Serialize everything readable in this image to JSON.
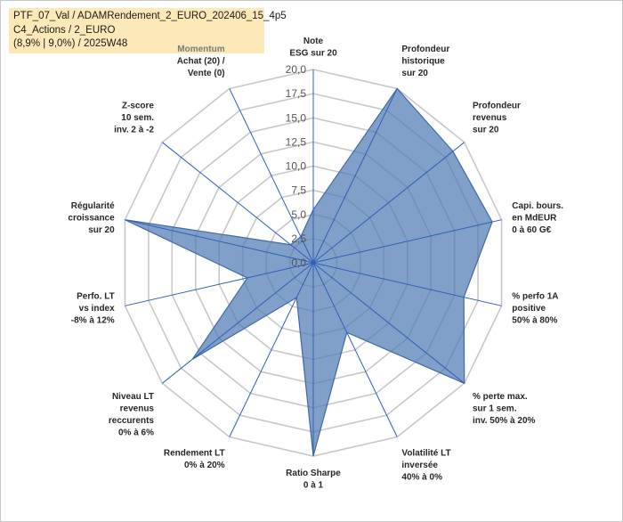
{
  "header": {
    "line1": "PTF_07_Val / ADAMRendement_2_EURO_202406_15_4p5",
    "line2": "C4_Actions / 2_EURO",
    "line3": "(8,9% | 9,0%) / 2025W48"
  },
  "colors": {
    "fill": "#4f7cb5",
    "axis": "#2e5fb8",
    "grid": "#c8c8c8"
  },
  "chart_data": {
    "type": "radar",
    "rmin": 0,
    "rmax": 20,
    "ticks": [
      "0,0",
      "2,5",
      "5,0",
      "7,5",
      "10,0",
      "12,5",
      "15,0",
      "17,5",
      "20,0"
    ],
    "axes": [
      {
        "lines": [
          "Note",
          "ESG sur 20"
        ],
        "value": 5.5,
        "muted": [
          false,
          false
        ]
      },
      {
        "lines": [
          "Profondeur",
          "historique",
          "sur 20"
        ],
        "value": 20,
        "muted": [
          false,
          false,
          false
        ]
      },
      {
        "lines": [
          "Profondeur",
          "revenus",
          "sur 20"
        ],
        "value": 18.5,
        "muted": [
          false,
          false,
          false
        ]
      },
      {
        "lines": [
          "Capi. bours.",
          "en MdEUR",
          "0 à 60 G€"
        ],
        "value": 19,
        "muted": [
          false,
          false,
          false
        ]
      },
      {
        "lines": [
          "% perfo 1A",
          "positive",
          "50% à 80%"
        ],
        "value": 16,
        "muted": [
          false,
          false,
          false
        ]
      },
      {
        "lines": [
          "% perte max.",
          "sur 1 sem.",
          "inv. 50% à 20%"
        ],
        "value": 20,
        "muted": [
          false,
          false,
          false
        ]
      },
      {
        "lines": [
          "Volatilité LT",
          "inversée",
          "40% à 0%"
        ],
        "value": 8,
        "muted": [
          false,
          false,
          false
        ]
      },
      {
        "lines": [
          "Ratio Sharpe",
          "0 à 1"
        ],
        "value": 20,
        "muted": [
          false,
          false
        ]
      },
      {
        "lines": [
          "Rendement LT",
          "0% à 20%"
        ],
        "value": 4,
        "muted": [
          false,
          false
        ]
      },
      {
        "lines": [
          "Niveau LT",
          "revenus",
          "reccurents",
          "0% à 6%"
        ],
        "value": 16,
        "muted": [
          false,
          false,
          false,
          false
        ]
      },
      {
        "lines": [
          "Perfo. LT",
          "vs index",
          "-8% à 12%"
        ],
        "value": 7,
        "muted": [
          false,
          false,
          false
        ]
      },
      {
        "lines": [
          "Régularité",
          "croissance",
          "sur 20"
        ],
        "value": 20,
        "muted": [
          false,
          false,
          false
        ]
      },
      {
        "lines": [
          "Z-score",
          "10 sem.",
          "inv. 2 à -2"
        ],
        "value": 3,
        "muted": [
          false,
          false,
          false
        ]
      },
      {
        "lines": [
          "Momentum",
          "Achat (20) /",
          "Vente (0)"
        ],
        "value": 3,
        "muted": [
          true,
          false,
          false
        ]
      }
    ]
  }
}
